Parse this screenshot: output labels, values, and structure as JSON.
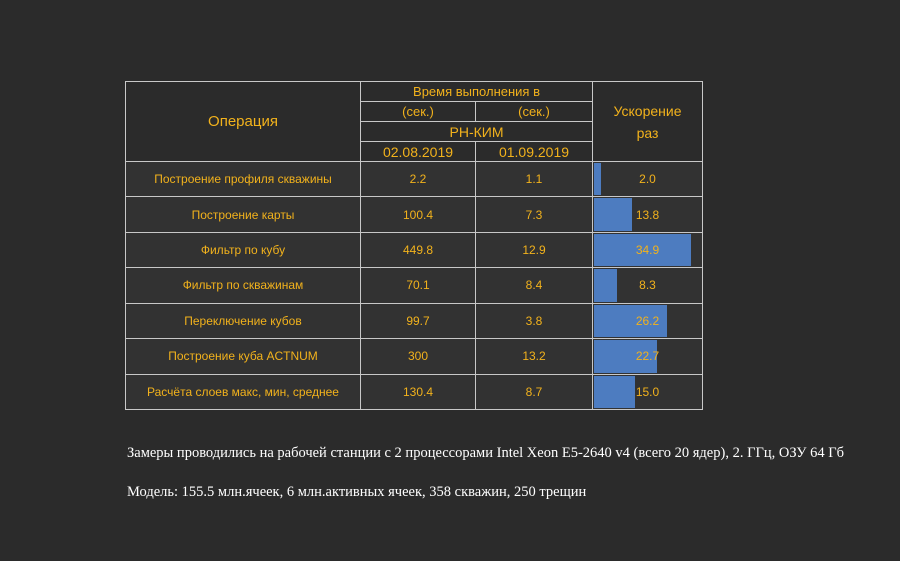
{
  "header": {
    "operation": "Операция",
    "exec_time": "Время выполнения в",
    "sec1": "(сек.)",
    "sec2": "(сек.)",
    "app": "РН-КИМ",
    "date1": "02.08.2019",
    "date2": "01.09.2019",
    "speedup_line1": "Ускорение",
    "speedup_line2": "раз"
  },
  "rows": [
    {
      "name": "Построение профиля скважины",
      "t1": "2.2",
      "t2": "1.1",
      "speedup": "2.0",
      "bar_fraction": 0.06
    },
    {
      "name": "Построение карты",
      "t1": "100.4",
      "t2": "7.3",
      "speedup": "13.8",
      "bar_fraction": 0.35
    },
    {
      "name": "Фильтр по кубу",
      "t1": "449.8",
      "t2": "12.9",
      "speedup": "34.9",
      "bar_fraction": 0.89
    },
    {
      "name": "Фильтр по скважинам",
      "t1": "70.1",
      "t2": "8.4",
      "speedup": "8.3",
      "bar_fraction": 0.21
    },
    {
      "name": "Переключение кубов",
      "t1": "99.7",
      "t2": "3.8",
      "speedup": "26.2",
      "bar_fraction": 0.67
    },
    {
      "name": "Построение куба ACTNUM",
      "t1": "300",
      "t2": "13.2",
      "speedup": "22.7",
      "bar_fraction": 0.58
    },
    {
      "name": "Расчёта слоев макс, мин, среднее",
      "t1": "130.4",
      "t2": "8.7",
      "speedup": "15.0",
      "bar_fraction": 0.38
    }
  ],
  "notes": {
    "line1": "Замеры проводились на рабочей станции с 2 процессорами Intel Xeon E5-2640 v4 (всего 20 ядер), 2. ГГц, ОЗУ 64 Гб",
    "line2": "Модель: 155.5 млн.ячеек, 6 млн.активных ячеек, 358 скважин, 250 трещин"
  },
  "colors": {
    "background": "#2b2b2b",
    "text": "#f2b21c",
    "bar": "#4d7cc0",
    "border": "#c8c8c8"
  }
}
